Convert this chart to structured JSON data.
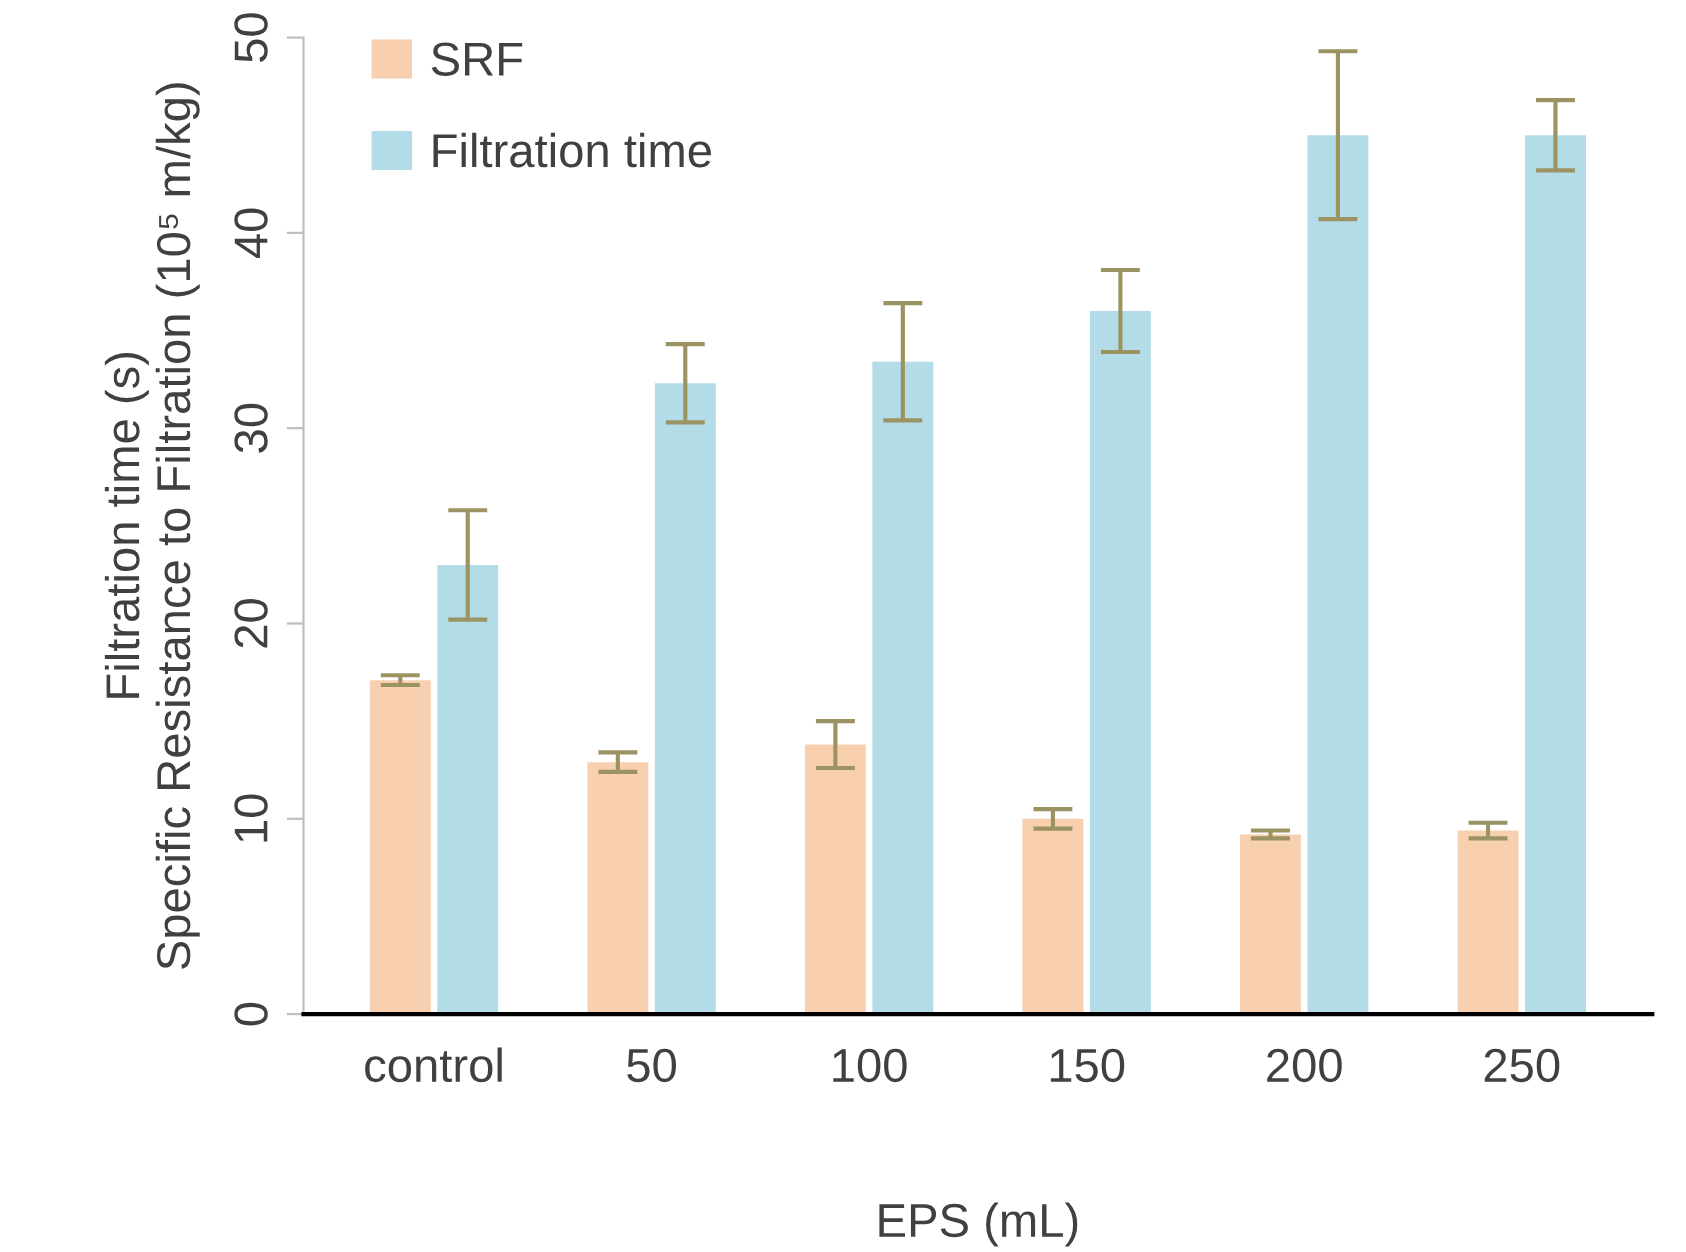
{
  "chart_data": {
    "type": "bar",
    "xlabel": "EPS (mL)",
    "ylabel": "Filtration time (s)\nSpecific Resistance to Filtration (10⁵ m/kg)",
    "categories": [
      "control",
      "50",
      "100",
      "150",
      "200",
      "250"
    ],
    "series": [
      {
        "name": "SRF",
        "color": "#f8d0b0",
        "values": [
          17.1,
          12.9,
          13.8,
          10.0,
          9.2,
          9.4
        ],
        "errors": [
          0.25,
          0.5,
          1.2,
          0.5,
          0.2,
          0.4
        ]
      },
      {
        "name": "Filtration time",
        "color": "#b4dbe8",
        "values": [
          23.0,
          32.3,
          33.4,
          36.0,
          45.0,
          45.0
        ],
        "errors": [
          2.8,
          2.0,
          3.0,
          2.1,
          4.3,
          1.8
        ]
      }
    ],
    "ylim": [
      0,
      50
    ],
    "yticks": [
      0,
      10,
      20,
      30,
      40,
      50
    ],
    "grid": false,
    "legend": "top left"
  }
}
